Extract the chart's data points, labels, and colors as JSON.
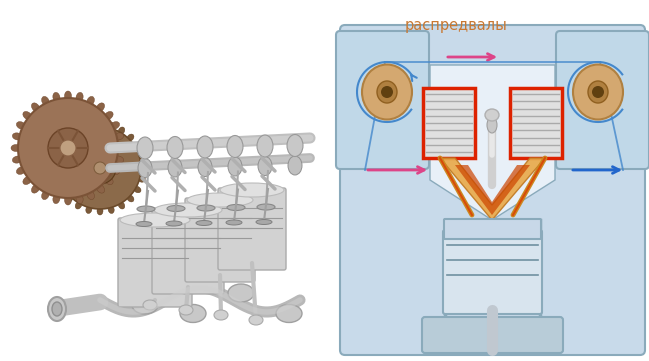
{
  "annotation_text": "распредвалы",
  "annotation_color": "#c87832",
  "annotation_fontsize": 10.5,
  "bg_color": "#ffffff",
  "fig_width": 6.49,
  "fig_height": 3.61,
  "dpi": 100
}
